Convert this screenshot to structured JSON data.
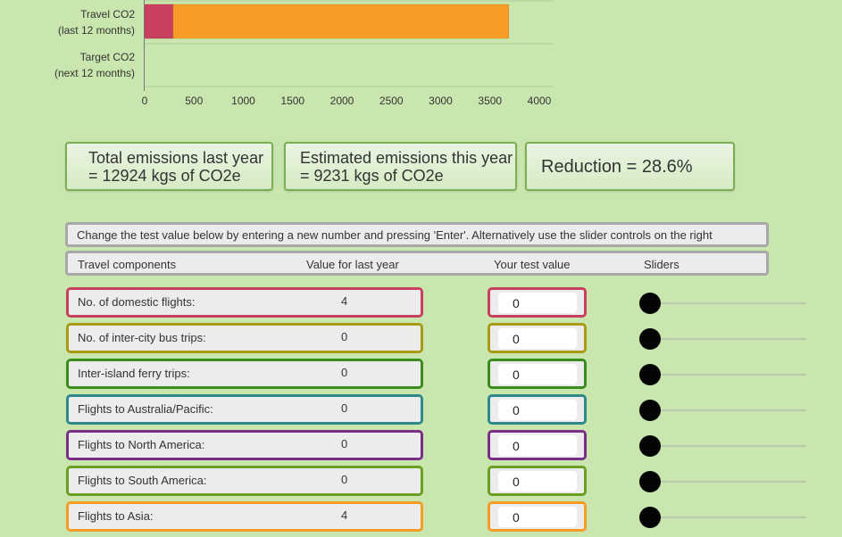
{
  "chart_data": {
    "type": "bar",
    "orientation": "horizontal",
    "stacked": true,
    "categories": [
      [
        "Travel CO2",
        "(last 12 months)"
      ],
      [
        "Target CO2",
        "(next 12 months)"
      ]
    ],
    "series": [
      {
        "color": "#c8405e",
        "values": [
          290,
          0
        ]
      },
      {
        "color": "#f89c28",
        "values": [
          3400,
          0
        ]
      }
    ],
    "xlim": [
      0,
      4000
    ],
    "xticks": [
      "0",
      "500",
      "1000",
      "1500",
      "2000",
      "2500",
      "3000",
      "3500",
      "4000"
    ],
    "grid": true
  },
  "summary": {
    "total_line1": "Total emissions last year",
    "total_line2": "= 12924 kgs of CO2e",
    "estimated_line1": "Estimated emissions this year",
    "estimated_line2": "= 9231 kgs of CO2e",
    "reduction": "Reduction = 28.6%"
  },
  "instructions": "Change the test value below by entering a new number and pressing 'Enter'. Alternatively use the slider controls on the right",
  "headers": {
    "components": "Travel components",
    "last_year": "Value for last year",
    "test_value": "Your test value",
    "sliders": "Sliders"
  },
  "rows": [
    {
      "label": "No. of domestic flights:",
      "last_year": "4",
      "test_value": "0",
      "color": "#c8405e",
      "slider": 0
    },
    {
      "label": "No. of inter-city bus trips:",
      "last_year": "0",
      "test_value": "0",
      "color": "#a89a12",
      "slider": 0
    },
    {
      "label": "Inter-island ferry trips:",
      "last_year": "0",
      "test_value": "0",
      "color": "#3a8c1e",
      "slider": 0
    },
    {
      "label": "Flights to Australia/Pacific:",
      "last_year": "0",
      "test_value": "0",
      "color": "#2e8a8a",
      "slider": 0
    },
    {
      "label": "Flights to North America:",
      "last_year": "0",
      "test_value": "0",
      "color": "#7a2e88",
      "slider": 0
    },
    {
      "label": "Flights to South America:",
      "last_year": "0",
      "test_value": "0",
      "color": "#6aa020",
      "slider": 0
    },
    {
      "label": "Flights to Asia:",
      "last_year": "4",
      "test_value": "0",
      "color": "#f89c28",
      "slider": 0
    }
  ]
}
